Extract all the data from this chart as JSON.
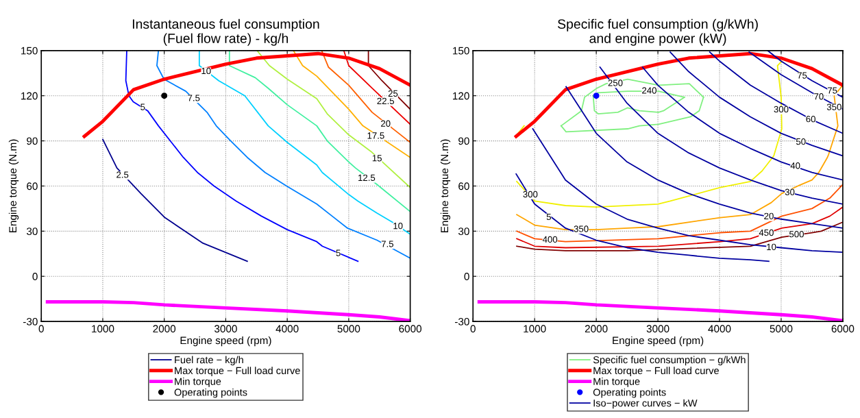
{
  "chart_data": [
    {
      "type": "line",
      "title": "Instantaneous fuel consumption\n(Fuel flow rate) - kg/h",
      "xlabel": "Engine speed (rpm)",
      "ylabel": "Engine torque (N.m)",
      "xlim": [
        0,
        6000
      ],
      "xticks": [
        0,
        1000,
        2000,
        3000,
        4000,
        5000,
        6000
      ],
      "ylim": [
        -30,
        150
      ],
      "yticks": [
        -30,
        0,
        30,
        60,
        90,
        120,
        150
      ],
      "grid": true,
      "legend": "bottom",
      "series": [
        {
          "name": "Fuel rate − kg/h",
          "color": "#00008f",
          "x": [
            1000,
            1230,
            1620,
            2010,
            2630,
            3350
          ],
          "values": [
            91,
            72,
            55,
            39,
            22,
            10
          ]
        },
        {
          "color": "#0000ff",
          "x": [
            1390,
            1375,
            1425,
            1495,
            1730,
            1905,
            2310,
            2540,
            2810,
            3170,
            3580,
            4000,
            4480,
            4570,
            5150
          ],
          "values": [
            150,
            130,
            120,
            116,
            110,
            100,
            79,
            69,
            60,
            50,
            40,
            31,
            23,
            20,
            10
          ]
        },
        {
          "color": "#0080ff",
          "x": [
            1905,
            1880,
            1995,
            2350,
            2695,
            2845,
            3080,
            3350,
            3640,
            3990,
            4480,
            4730,
            4980,
            5460,
            6000
          ],
          "values": [
            150,
            140,
            131,
            123,
            109,
            100,
            90,
            79,
            69,
            60,
            48,
            40,
            32,
            24,
            12
          ]
        },
        {
          "color": "#00d0ff",
          "x": [
            2570,
            2570,
            2885,
            3310,
            3690,
            4000,
            4480,
            4570,
            4980,
            5150,
            5460,
            5710,
            6000
          ],
          "values": [
            150,
            140,
            130,
            120,
            100,
            89,
            74,
            69,
            55,
            50,
            42,
            36,
            28
          ]
        },
        {
          "color": "#40f0a0",
          "x": [
            3060,
            3060,
            3480,
            3690,
            4000,
            4480,
            4650,
            5000,
            5110,
            5460,
            6000
          ],
          "values": [
            150,
            140,
            132,
            125,
            114,
            100,
            90,
            76,
            72,
            61,
            43
          ]
        },
        {
          "color": "#b0f040",
          "x": [
            3510,
            3710,
            4000,
            4480,
            4650,
            5000,
            5360,
            6000
          ],
          "values": [
            150,
            140,
            131,
            118,
            108,
            94,
            83,
            59
          ]
        },
        {
          "color": "#ffb000",
          "x": [
            4100,
            4250,
            4480,
            5000,
            5230,
            6000
          ],
          "values": [
            150,
            140,
            133,
            111,
            100,
            79
          ]
        },
        {
          "color": "#ff6000",
          "x": [
            4560,
            4670,
            5000,
            5380,
            6000
          ],
          "values": [
            150,
            139,
            127,
            109,
            89
          ]
        },
        {
          "color": "#ee0000",
          "x": [
            4920,
            5000,
            5380,
            6000
          ],
          "values": [
            150,
            140,
            125,
            101
          ]
        },
        {
          "color": "#800000",
          "x": [
            5320,
            5320,
            5540,
            6000
          ],
          "values": [
            150,
            140,
            130,
            111
          ]
        },
        {
          "name": "Max torque − Full load curve",
          "color": "#ff0000",
          "x": [
            700,
            1000,
            1500,
            2000,
            3000,
            3500,
            4500,
            5000,
            5500,
            6000
          ],
          "values": [
            93,
            103,
            124,
            131,
            141,
            145,
            148,
            145,
            138,
            127
          ]
        },
        {
          "name": "Min torque",
          "color": "#ff00ff",
          "x": [
            100,
            1000,
            1500,
            2000,
            3000,
            4000,
            5000,
            5500,
            6000
          ],
          "values": [
            -17,
            -17,
            -17.5,
            -19,
            -21,
            -23,
            -25.5,
            -27,
            -29.5
          ]
        },
        {
          "name": "Operating points",
          "type": "scatter",
          "color": "#000000",
          "x": [
            2000
          ],
          "values": [
            120
          ]
        }
      ],
      "annotations": [
        {
          "text": "2.5",
          "x": 1320,
          "y": 67
        },
        {
          "text": "5",
          "x": 1650,
          "y": 112
        },
        {
          "text": "7.5",
          "x": 2480,
          "y": 118
        },
        {
          "text": "10",
          "x": 2680,
          "y": 136
        },
        {
          "text": "12.5",
          "x": 5290,
          "y": 65
        },
        {
          "text": "15",
          "x": 5460,
          "y": 78
        },
        {
          "text": "17.5",
          "x": 5440,
          "y": 93
        },
        {
          "text": "20",
          "x": 5600,
          "y": 101
        },
        {
          "text": "22.5",
          "x": 5600,
          "y": 116
        },
        {
          "text": "25",
          "x": 5720,
          "y": 121
        },
        {
          "text": "10",
          "x": 5800,
          "y": 33
        },
        {
          "text": "7.5",
          "x": 5630,
          "y": 21
        },
        {
          "text": "5",
          "x": 4830,
          "y": 15
        }
      ]
    },
    {
      "type": "line",
      "title": "Specific fuel consumption (g/kWh)\nand engine power (kW)",
      "xlabel": "Engine speed (rpm)",
      "ylabel": "Engine torque (N.m)",
      "xlim": [
        0,
        6000
      ],
      "xticks": [
        0,
        1000,
        2000,
        3000,
        4000,
        5000,
        6000
      ],
      "ylim": [
        -30,
        150
      ],
      "yticks": [
        -30,
        0,
        30,
        60,
        90,
        120,
        150
      ],
      "grid": true,
      "legend": "bottom",
      "series": [
        {
          "name": "Specific fuel consumption − g/kWh",
          "color": "#80f080",
          "x": [
            1950,
            1970,
            2030,
            2350,
            2510,
            2700,
            3010,
            3090,
            3430
          ],
          "values": [
            120,
            110,
            108,
            109,
            112,
            110,
            109,
            110,
            119
          ]
        },
        {
          "color": "#80f080",
          "x": [
            1950,
            2030,
            2510,
            2700,
            3010,
            3430
          ],
          "values": [
            120,
            122,
            123,
            123,
            123,
            119
          ]
        },
        {
          "color": "#80f080",
          "x": [
            1430,
            1760,
            1810,
            2010,
            2160,
            2510,
            3010,
            3510,
            3740
          ],
          "values": [
            100,
            110,
            119,
            125,
            128,
            131,
            127,
            128,
            119
          ]
        },
        {
          "color": "#80f080",
          "x": [
            1430,
            1510,
            2510,
            2700,
            3010,
            3530,
            3670,
            3740
          ],
          "values": [
            100,
            96,
            98,
            100,
            101,
            106,
            110,
            119
          ]
        },
        {
          "color": "#f0f000",
          "x": [
            710,
            1000,
            1500,
            2000,
            3000,
            3200,
            4010,
            4500,
            4690,
            4880,
            5010,
            5000,
            4940,
            5010
          ],
          "values": [
            63,
            50,
            47,
            46,
            48,
            50,
            59,
            63,
            70,
            80,
            98,
            119,
            140,
            143
          ]
        },
        {
          "color": "#f0f000",
          "x": [
            710,
            830
          ],
          "values": [
            94,
            100
          ]
        },
        {
          "color": "#ffa500",
          "x": [
            710,
            1000,
            1500,
            2000,
            2510,
            3010,
            4010,
            4500,
            4840,
            5010,
            5270,
            5500,
            5610,
            5750,
            5770,
            5920,
            5860,
            6000
          ],
          "values": [
            41,
            34,
            31,
            31,
            32,
            33,
            39,
            41,
            49,
            55,
            60,
            64,
            69,
            79,
            81,
            100,
            120,
            127
          ]
        },
        {
          "color": "#ff5000",
          "x": [
            710,
            1000,
            1500,
            3010,
            4010,
            4500,
            5010,
            5500,
            5790,
            6000
          ],
          "values": [
            30,
            25,
            23,
            25,
            29,
            30,
            40,
            45,
            52,
            61
          ]
        },
        {
          "color": "#e00000",
          "x": [
            710,
            1000,
            1500,
            3010,
            4010,
            4500,
            5010,
            5500,
            5790,
            6000
          ],
          "values": [
            25,
            20,
            19,
            20,
            23,
            25,
            32,
            35,
            40,
            46
          ]
        },
        {
          "color": "#800000",
          "x": [
            710,
            1000,
            1500,
            2510,
            4500,
            5010,
            5500,
            5650,
            6000
          ],
          "values": [
            20,
            18,
            17,
            17,
            20,
            26,
            29,
            30,
            36
          ]
        },
        {
          "name": "Max torque − Full load curve",
          "color": "#ff0000",
          "x": [
            700,
            1000,
            1500,
            2000,
            3000,
            3500,
            4500,
            5000,
            5500,
            6000
          ],
          "values": [
            93,
            103,
            124,
            131,
            141,
            145,
            148,
            145,
            138,
            127
          ]
        },
        {
          "name": "Min torque",
          "color": "#ff00ff",
          "x": [
            100,
            1000,
            1500,
            2000,
            3000,
            4000,
            5000,
            5500,
            6000
          ],
          "values": [
            -17,
            -17,
            -17.5,
            -19,
            -21,
            -23,
            -25.5,
            -27,
            -29.5
          ]
        },
        {
          "name": "Operating points",
          "type": "scatter",
          "color": "#0000ff",
          "x": [
            2000
          ],
          "values": [
            120
          ]
        },
        {
          "name": "Iso−power curves − kW",
          "color": "#0000a0",
          "x": [
            700,
            1000,
            1500,
            2000,
            2500,
            3000,
            3500,
            4000,
            4500,
            4800
          ],
          "values": [
            68,
            48,
            32,
            24,
            19,
            16,
            14,
            12,
            11,
            10
          ]
        },
        {
          "color": "#0000a0",
          "x": [
            970,
            1500,
            2000,
            2500,
            3000,
            3500,
            4000,
            4500,
            5000,
            5500,
            6000
          ],
          "values": [
            98,
            64,
            48,
            38,
            32,
            27,
            24,
            21,
            19,
            17,
            16
          ]
        },
        {
          "color": "#0000a0",
          "x": [
            1510,
            2000,
            2500,
            3000,
            3500,
            4000,
            4500,
            5000,
            5500,
            6000
          ],
          "values": [
            126,
            95,
            76,
            64,
            55,
            48,
            42,
            38,
            35,
            32
          ]
        },
        {
          "color": "#0000a0",
          "x": [
            2060,
            2500,
            3000,
            3500,
            4000,
            4500,
            5000,
            5500,
            6000
          ],
          "values": [
            139,
            115,
            95,
            82,
            72,
            64,
            57,
            52,
            48
          ]
        },
        {
          "color": "#0000a0",
          "x": [
            2750,
            3000,
            3500,
            4000,
            4500,
            5000,
            5500,
            6000
          ],
          "values": [
            139,
            127,
            109,
            95,
            85,
            76,
            69,
            64
          ]
        },
        {
          "color": "#0000a0",
          "x": [
            3200,
            3500,
            4000,
            4500,
            5000,
            5500,
            6000
          ],
          "values": [
            149,
            136,
            119,
            106,
            95,
            87,
            80
          ]
        },
        {
          "color": "#0000a0",
          "x": [
            3840,
            4000,
            4500,
            5000,
            5500,
            6000
          ],
          "values": [
            149,
            143,
            127,
            115,
            104,
            95
          ]
        },
        {
          "color": "#0000a0",
          "x": [
            4480,
            5000,
            5500,
            6000
          ],
          "values": [
            149,
            134,
            122,
            111
          ]
        },
        {
          "color": "#0000a0",
          "x": [
            4780,
            5000,
            5500,
            6000
          ],
          "values": [
            150,
            143,
            130,
            119
          ]
        }
      ],
      "annotations": [
        {
          "text": "250",
          "x": 2310,
          "y": 128
        },
        {
          "text": "240",
          "x": 2860,
          "y": 123
        },
        {
          "text": "300",
          "x": 5000,
          "y": 110.5
        },
        {
          "text": "350",
          "x": 5860,
          "y": 112
        },
        {
          "text": "300",
          "x": 930,
          "y": 54
        },
        {
          "text": "5",
          "x": 1230,
          "y": 39
        },
        {
          "text": "350",
          "x": 1755,
          "y": 31
        },
        {
          "text": "400",
          "x": 1250,
          "y": 24
        },
        {
          "text": "20",
          "x": 4800,
          "y": 39.5
        },
        {
          "text": "450",
          "x": 4760,
          "y": 28.5
        },
        {
          "text": "500",
          "x": 5250,
          "y": 27.5
        },
        {
          "text": "10",
          "x": 4840,
          "y": 19
        },
        {
          "text": "30",
          "x": 5140,
          "y": 55.5
        },
        {
          "text": "40",
          "x": 5230,
          "y": 73
        },
        {
          "text": "50",
          "x": 5320,
          "y": 89
        },
        {
          "text": "60",
          "x": 5480,
          "y": 104
        },
        {
          "text": "70",
          "x": 5610,
          "y": 119
        },
        {
          "text": "75",
          "x": 5340,
          "y": 133
        },
        {
          "text": "75",
          "x": 5830,
          "y": 123
        }
      ]
    }
  ]
}
